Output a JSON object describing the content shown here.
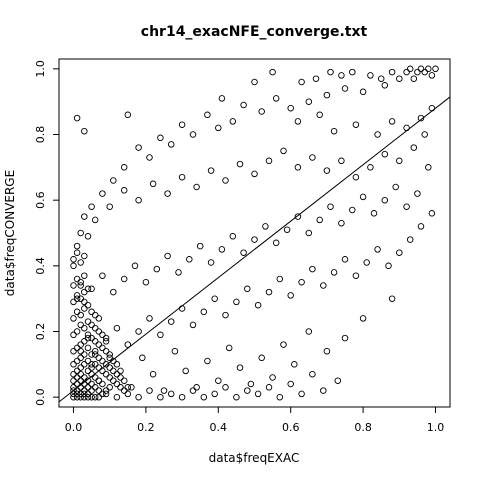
{
  "chart_data": {
    "type": "scatter",
    "title": "chr14_exacNFE_converge.txt",
    "xlabel": "data$freqEXAC",
    "ylabel": "data$freqCONVERGE",
    "xlim": [
      -0.04,
      1.04
    ],
    "ylim": [
      -0.03,
      1.03
    ],
    "x_ticks": [
      "0.0",
      "0.2",
      "0.4",
      "0.6",
      "0.8",
      "1.0"
    ],
    "y_ticks": [
      "0.0",
      "0.2",
      "0.4",
      "0.6",
      "0.8",
      "1.0"
    ],
    "grid": false,
    "legend": "none",
    "marker": "open-circle",
    "fit_line": {
      "intercept": 0.02,
      "slope": 0.86
    },
    "points": [
      [
        0.01,
        0.85
      ],
      [
        0.03,
        0.81
      ],
      [
        0.15,
        0.86
      ],
      [
        0.41,
        0.91
      ],
      [
        0.5,
        0.96
      ],
      [
        0.55,
        0.99
      ],
      [
        0.63,
        0.96
      ],
      [
        0.67,
        0.97
      ],
      [
        0.71,
        0.99
      ],
      [
        0.74,
        0.98
      ],
      [
        0.77,
        0.99
      ],
      [
        0.82,
        0.98
      ],
      [
        0.85,
        0.97
      ],
      [
        0.88,
        0.99
      ],
      [
        0.92,
        0.99
      ],
      [
        0.94,
        0.97
      ],
      [
        0.96,
        1.0
      ],
      [
        0.97,
        0.99
      ],
      [
        0.98,
        1.0
      ],
      [
        0.99,
        0.98
      ],
      [
        1.0,
        1.0
      ],
      [
        0.95,
        0.99
      ],
      [
        0.93,
        1.0
      ],
      [
        0.9,
        0.97
      ],
      [
        0.86,
        0.95
      ],
      [
        0.8,
        0.93
      ],
      [
        0.75,
        0.94
      ],
      [
        0.7,
        0.92
      ],
      [
        0.65,
        0.9
      ],
      [
        0.6,
        0.88
      ],
      [
        0.56,
        0.91
      ],
      [
        0.52,
        0.87
      ],
      [
        0.47,
        0.89
      ],
      [
        0.44,
        0.84
      ],
      [
        0.4,
        0.82
      ],
      [
        0.37,
        0.86
      ],
      [
        0.33,
        0.8
      ],
      [
        0.3,
        0.83
      ],
      [
        0.27,
        0.77
      ],
      [
        0.24,
        0.79
      ],
      [
        0.21,
        0.73
      ],
      [
        0.18,
        0.76
      ],
      [
        0.14,
        0.7
      ],
      [
        0.11,
        0.66
      ],
      [
        0.08,
        0.62
      ],
      [
        0.05,
        0.58
      ],
      [
        0.03,
        0.55
      ],
      [
        0.02,
        0.5
      ],
      [
        0.01,
        0.46
      ],
      [
        0.0,
        0.42
      ],
      [
        0.62,
        0.84
      ],
      [
        0.68,
        0.86
      ],
      [
        0.72,
        0.81
      ],
      [
        0.78,
        0.83
      ],
      [
        0.84,
        0.8
      ],
      [
        0.88,
        0.84
      ],
      [
        0.92,
        0.82
      ],
      [
        0.96,
        0.85
      ],
      [
        0.99,
        0.88
      ],
      [
        0.97,
        0.8
      ],
      [
        0.94,
        0.76
      ],
      [
        0.9,
        0.72
      ],
      [
        0.86,
        0.74
      ],
      [
        0.82,
        0.7
      ],
      [
        0.78,
        0.67
      ],
      [
        0.74,
        0.72
      ],
      [
        0.7,
        0.69
      ],
      [
        0.66,
        0.73
      ],
      [
        0.62,
        0.7
      ],
      [
        0.58,
        0.75
      ],
      [
        0.54,
        0.72
      ],
      [
        0.5,
        0.68
      ],
      [
        0.46,
        0.71
      ],
      [
        0.42,
        0.66
      ],
      [
        0.38,
        0.69
      ],
      [
        0.34,
        0.64
      ],
      [
        0.3,
        0.67
      ],
      [
        0.26,
        0.62
      ],
      [
        0.22,
        0.65
      ],
      [
        0.18,
        0.6
      ],
      [
        0.14,
        0.63
      ],
      [
        0.1,
        0.58
      ],
      [
        0.06,
        0.54
      ],
      [
        0.04,
        0.49
      ],
      [
        0.98,
        0.7
      ],
      [
        0.95,
        0.62
      ],
      [
        0.92,
        0.58
      ],
      [
        0.89,
        0.64
      ],
      [
        0.86,
        0.6
      ],
      [
        0.83,
        0.56
      ],
      [
        0.8,
        0.61
      ],
      [
        0.77,
        0.57
      ],
      [
        0.74,
        0.53
      ],
      [
        0.71,
        0.58
      ],
      [
        0.68,
        0.54
      ],
      [
        0.65,
        0.5
      ],
      [
        0.62,
        0.55
      ],
      [
        0.59,
        0.51
      ],
      [
        0.56,
        0.47
      ],
      [
        0.53,
        0.52
      ],
      [
        0.5,
        0.48
      ],
      [
        0.47,
        0.44
      ],
      [
        0.44,
        0.49
      ],
      [
        0.41,
        0.45
      ],
      [
        0.38,
        0.41
      ],
      [
        0.35,
        0.46
      ],
      [
        0.32,
        0.42
      ],
      [
        0.29,
        0.38
      ],
      [
        0.26,
        0.43
      ],
      [
        0.23,
        0.39
      ],
      [
        0.2,
        0.35
      ],
      [
        0.17,
        0.4
      ],
      [
        0.14,
        0.36
      ],
      [
        0.11,
        0.32
      ],
      [
        0.08,
        0.37
      ],
      [
        0.05,
        0.33
      ],
      [
        0.03,
        0.29
      ],
      [
        0.02,
        0.34
      ],
      [
        0.01,
        0.3
      ],
      [
        0.99,
        0.56
      ],
      [
        0.96,
        0.52
      ],
      [
        0.93,
        0.48
      ],
      [
        0.9,
        0.44
      ],
      [
        0.87,
        0.4
      ],
      [
        0.84,
        0.45
      ],
      [
        0.81,
        0.41
      ],
      [
        0.78,
        0.37
      ],
      [
        0.75,
        0.42
      ],
      [
        0.72,
        0.38
      ],
      [
        0.69,
        0.34
      ],
      [
        0.66,
        0.39
      ],
      [
        0.63,
        0.35
      ],
      [
        0.6,
        0.31
      ],
      [
        0.57,
        0.36
      ],
      [
        0.54,
        0.32
      ],
      [
        0.51,
        0.28
      ],
      [
        0.48,
        0.33
      ],
      [
        0.45,
        0.29
      ],
      [
        0.42,
        0.25
      ],
      [
        0.39,
        0.3
      ],
      [
        0.36,
        0.26
      ],
      [
        0.33,
        0.22
      ],
      [
        0.3,
        0.27
      ],
      [
        0.27,
        0.23
      ],
      [
        0.24,
        0.19
      ],
      [
        0.21,
        0.24
      ],
      [
        0.18,
        0.2
      ],
      [
        0.15,
        0.16
      ],
      [
        0.12,
        0.21
      ],
      [
        0.09,
        0.17
      ],
      [
        0.06,
        0.13
      ],
      [
        0.04,
        0.18
      ],
      [
        0.02,
        0.14
      ],
      [
        0.88,
        0.3
      ],
      [
        0.8,
        0.24
      ],
      [
        0.75,
        0.18
      ],
      [
        0.7,
        0.14
      ],
      [
        0.65,
        0.2
      ],
      [
        0.61,
        0.1
      ],
      [
        0.58,
        0.16
      ],
      [
        0.55,
        0.06
      ],
      [
        0.52,
        0.12
      ],
      [
        0.49,
        0.04
      ],
      [
        0.46,
        0.09
      ],
      [
        0.43,
        0.15
      ],
      [
        0.4,
        0.05
      ],
      [
        0.37,
        0.11
      ],
      [
        0.34,
        0.03
      ],
      [
        0.31,
        0.08
      ],
      [
        0.28,
        0.14
      ],
      [
        0.25,
        0.02
      ],
      [
        0.22,
        0.07
      ],
      [
        0.19,
        0.12
      ],
      [
        0.16,
        0.03
      ],
      [
        0.13,
        0.08
      ],
      [
        0.1,
        0.13
      ],
      [
        0.07,
        0.05
      ],
      [
        0.05,
        0.1
      ],
      [
        0.73,
        0.05
      ],
      [
        0.69,
        0.02
      ],
      [
        0.66,
        0.07
      ],
      [
        0.63,
        0.01
      ],
      [
        0.6,
        0.04
      ],
      [
        0.57,
        0.0
      ],
      [
        0.54,
        0.03
      ],
      [
        0.51,
        0.01
      ],
      [
        0.48,
        0.02
      ],
      [
        0.45,
        0.0
      ],
      [
        0.42,
        0.03
      ],
      [
        0.39,
        0.01
      ],
      [
        0.36,
        0.0
      ],
      [
        0.33,
        0.02
      ],
      [
        0.3,
        0.0
      ],
      [
        0.27,
        0.01
      ],
      [
        0.24,
        0.0
      ],
      [
        0.21,
        0.02
      ],
      [
        0.18,
        0.0
      ],
      [
        0.15,
        0.01
      ],
      [
        0.12,
        0.0
      ],
      [
        0.09,
        0.01
      ],
      [
        0.07,
        0.0
      ],
      [
        0.0,
        0.0
      ],
      [
        0.01,
        0.0
      ],
      [
        0.02,
        0.0
      ],
      [
        0.03,
        0.0
      ],
      [
        0.04,
        0.0
      ],
      [
        0.05,
        0.0
      ],
      [
        0.06,
        0.0
      ],
      [
        0.0,
        0.01
      ],
      [
        0.01,
        0.01
      ],
      [
        0.02,
        0.01
      ],
      [
        0.03,
        0.01
      ],
      [
        0.04,
        0.01
      ],
      [
        0.05,
        0.02
      ],
      [
        0.0,
        0.02
      ],
      [
        0.01,
        0.02
      ],
      [
        0.02,
        0.03
      ],
      [
        0.03,
        0.02
      ],
      [
        0.0,
        0.03
      ],
      [
        0.01,
        0.04
      ],
      [
        0.02,
        0.05
      ],
      [
        0.03,
        0.04
      ],
      [
        0.04,
        0.03
      ],
      [
        0.0,
        0.05
      ],
      [
        0.01,
        0.06
      ],
      [
        0.02,
        0.07
      ],
      [
        0.03,
        0.06
      ],
      [
        0.04,
        0.05
      ],
      [
        0.05,
        0.04
      ],
      [
        0.06,
        0.03
      ],
      [
        0.07,
        0.02
      ],
      [
        0.08,
        0.01
      ],
      [
        0.09,
        0.02
      ],
      [
        0.1,
        0.03
      ],
      [
        0.0,
        0.07
      ],
      [
        0.01,
        0.08
      ],
      [
        0.02,
        0.09
      ],
      [
        0.03,
        0.1
      ],
      [
        0.04,
        0.08
      ],
      [
        0.05,
        0.07
      ],
      [
        0.06,
        0.06
      ],
      [
        0.07,
        0.05
      ],
      [
        0.08,
        0.04
      ],
      [
        0.0,
        0.1
      ],
      [
        0.01,
        0.11
      ],
      [
        0.02,
        0.12
      ],
      [
        0.03,
        0.13
      ],
      [
        0.04,
        0.11
      ],
      [
        0.05,
        0.09
      ],
      [
        0.06,
        0.1
      ],
      [
        0.07,
        0.09
      ],
      [
        0.08,
        0.08
      ],
      [
        0.09,
        0.07
      ],
      [
        0.1,
        0.06
      ],
      [
        0.11,
        0.05
      ],
      [
        0.12,
        0.04
      ],
      [
        0.13,
        0.03
      ],
      [
        0.14,
        0.02
      ],
      [
        0.15,
        0.03
      ],
      [
        0.0,
        0.14
      ],
      [
        0.01,
        0.15
      ],
      [
        0.02,
        0.16
      ],
      [
        0.03,
        0.17
      ],
      [
        0.04,
        0.15
      ],
      [
        0.05,
        0.13
      ],
      [
        0.06,
        0.14
      ],
      [
        0.07,
        0.12
      ],
      [
        0.08,
        0.11
      ],
      [
        0.09,
        0.1
      ],
      [
        0.1,
        0.09
      ],
      [
        0.11,
        0.08
      ],
      [
        0.12,
        0.07
      ],
      [
        0.13,
        0.06
      ],
      [
        0.14,
        0.05
      ],
      [
        0.0,
        0.19
      ],
      [
        0.01,
        0.2
      ],
      [
        0.02,
        0.22
      ],
      [
        0.03,
        0.21
      ],
      [
        0.04,
        0.19
      ],
      [
        0.05,
        0.18
      ],
      [
        0.06,
        0.17
      ],
      [
        0.07,
        0.16
      ],
      [
        0.08,
        0.15
      ],
      [
        0.09,
        0.14
      ],
      [
        0.1,
        0.12
      ],
      [
        0.11,
        0.11
      ],
      [
        0.12,
        0.1
      ],
      [
        0.0,
        0.24
      ],
      [
        0.01,
        0.26
      ],
      [
        0.02,
        0.25
      ],
      [
        0.03,
        0.27
      ],
      [
        0.04,
        0.23
      ],
      [
        0.05,
        0.22
      ],
      [
        0.06,
        0.21
      ],
      [
        0.07,
        0.2
      ],
      [
        0.08,
        0.19
      ],
      [
        0.09,
        0.18
      ],
      [
        0.0,
        0.29
      ],
      [
        0.01,
        0.31
      ],
      [
        0.02,
        0.3
      ],
      [
        0.03,
        0.32
      ],
      [
        0.04,
        0.28
      ],
      [
        0.05,
        0.26
      ],
      [
        0.06,
        0.25
      ],
      [
        0.07,
        0.24
      ],
      [
        0.0,
        0.34
      ],
      [
        0.01,
        0.36
      ],
      [
        0.02,
        0.35
      ],
      [
        0.03,
        0.37
      ],
      [
        0.04,
        0.33
      ],
      [
        0.0,
        0.4
      ],
      [
        0.02,
        0.41
      ],
      [
        0.01,
        0.44
      ],
      [
        0.03,
        0.43
      ]
    ]
  }
}
